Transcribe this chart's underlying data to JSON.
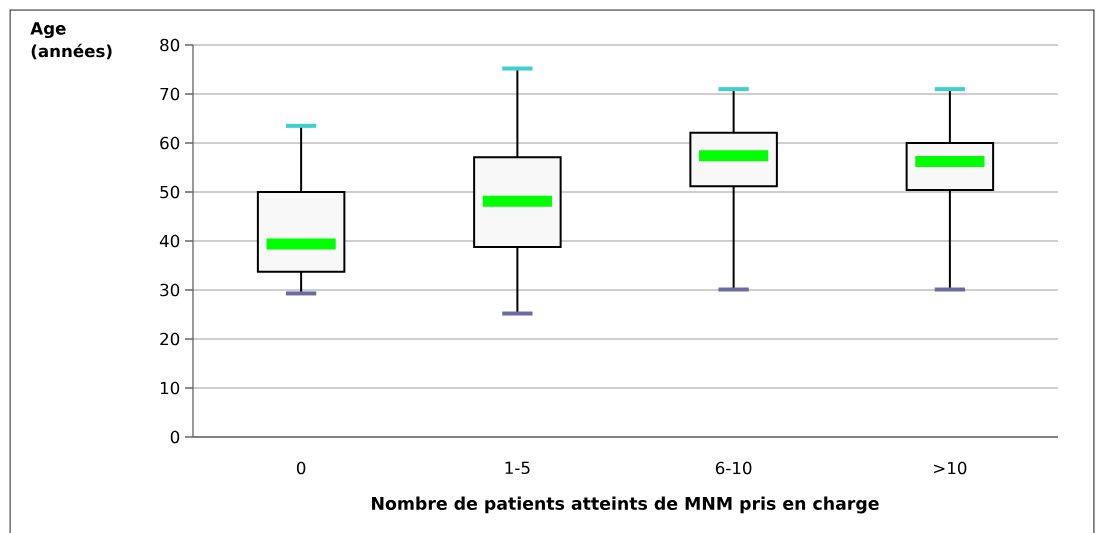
{
  "chart_data": {
    "type": "box",
    "ylabel": "Age (années)",
    "xlabel": "Nombre de patients atteints de MNM pris en charge",
    "categories": [
      "0",
      "1-5",
      "6-10",
      ">10"
    ],
    "boxes": [
      {
        "low": 29.3,
        "q1": 33.7,
        "median": 39.4,
        "q3": 50,
        "high": 63.5
      },
      {
        "low": 25.2,
        "q1": 38.8,
        "median": 48.1,
        "q3": 57.1,
        "high": 75.2
      },
      {
        "low": 30.1,
        "q1": 51.2,
        "median": 57.4,
        "q3": 62.1,
        "high": 71
      },
      {
        "low": 30.1,
        "q1": 50.4,
        "median": 56.2,
        "q3": 60,
        "high": 71
      }
    ],
    "ylim": [
      0,
      80
    ],
    "yticks": [
      0,
      10,
      20,
      30,
      40,
      50,
      60,
      70,
      80
    ],
    "grid": "y"
  }
}
